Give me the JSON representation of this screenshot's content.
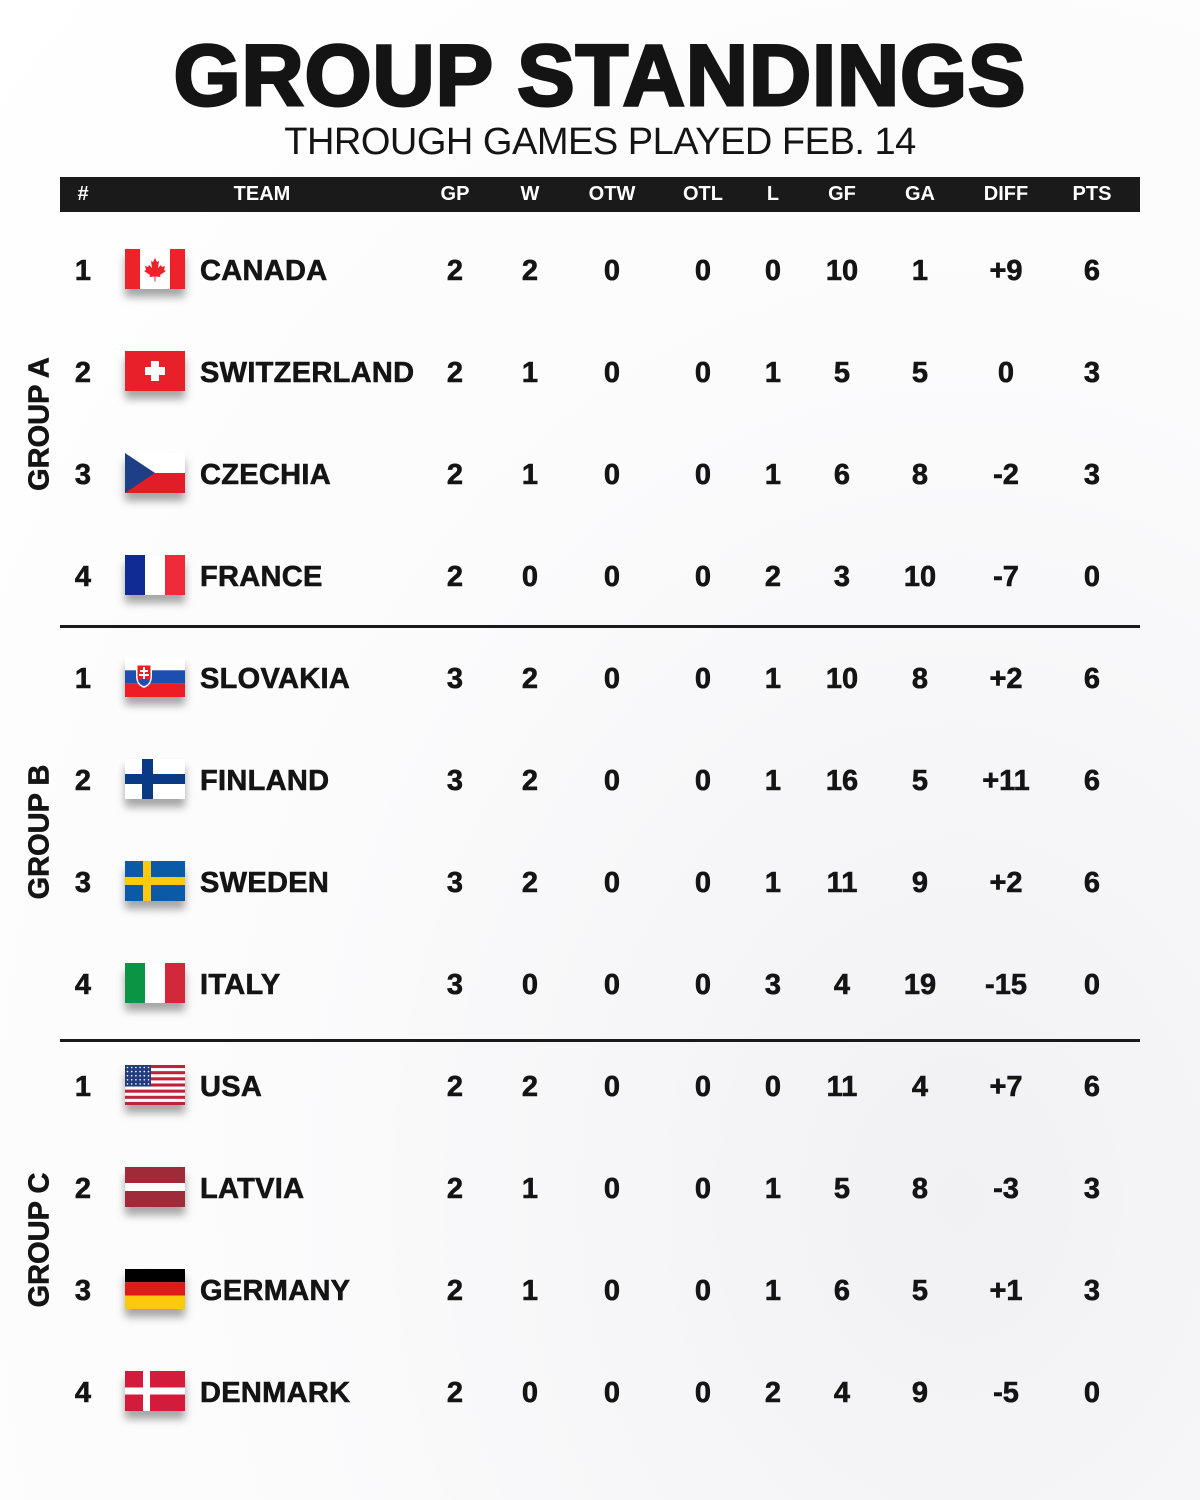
{
  "title": "GROUP STANDINGS",
  "subtitle": "THROUGH GAMES PLAYED FEB. 14",
  "columns": [
    "#",
    "TEAM",
    "GP",
    "W",
    "OTW",
    "OTL",
    "L",
    "GF",
    "GA",
    "DIFF",
    "PTS"
  ],
  "groups": [
    {
      "label": "GROUP A",
      "rows": [
        {
          "rank": "1",
          "flag": "canada-flag-icon",
          "team": "CANADA",
          "gp": "2",
          "w": "2",
          "otw": "0",
          "otl": "0",
          "l": "0",
          "gf": "10",
          "ga": "1",
          "diff": "+9",
          "pts": "6"
        },
        {
          "rank": "2",
          "flag": "switzerland-flag-icon",
          "team": "SWITZERLAND",
          "gp": "2",
          "w": "1",
          "otw": "0",
          "otl": "0",
          "l": "1",
          "gf": "5",
          "ga": "5",
          "diff": "0",
          "pts": "3"
        },
        {
          "rank": "3",
          "flag": "czechia-flag-icon",
          "team": "CZECHIA",
          "gp": "2",
          "w": "1",
          "otw": "0",
          "otl": "0",
          "l": "1",
          "gf": "6",
          "ga": "8",
          "diff": "-2",
          "pts": "3"
        },
        {
          "rank": "4",
          "flag": "france-flag-icon",
          "team": "FRANCE",
          "gp": "2",
          "w": "0",
          "otw": "0",
          "otl": "0",
          "l": "2",
          "gf": "3",
          "ga": "10",
          "diff": "-7",
          "pts": "0"
        }
      ]
    },
    {
      "label": "GROUP B",
      "rows": [
        {
          "rank": "1",
          "flag": "slovakia-flag-icon",
          "team": "SLOVAKIA",
          "gp": "3",
          "w": "2",
          "otw": "0",
          "otl": "0",
          "l": "1",
          "gf": "10",
          "ga": "8",
          "diff": "+2",
          "pts": "6"
        },
        {
          "rank": "2",
          "flag": "finland-flag-icon",
          "team": "FINLAND",
          "gp": "3",
          "w": "2",
          "otw": "0",
          "otl": "0",
          "l": "1",
          "gf": "16",
          "ga": "5",
          "diff": "+11",
          "pts": "6"
        },
        {
          "rank": "3",
          "flag": "sweden-flag-icon",
          "team": "SWEDEN",
          "gp": "3",
          "w": "2",
          "otw": "0",
          "otl": "0",
          "l": "1",
          "gf": "11",
          "ga": "9",
          "diff": "+2",
          "pts": "6"
        },
        {
          "rank": "4",
          "flag": "italy-flag-icon",
          "team": "ITALY",
          "gp": "3",
          "w": "0",
          "otw": "0",
          "otl": "0",
          "l": "3",
          "gf": "4",
          "ga": "19",
          "diff": "-15",
          "pts": "0"
        }
      ]
    },
    {
      "label": "GROUP C",
      "rows": [
        {
          "rank": "1",
          "flag": "usa-flag-icon",
          "team": "USA",
          "gp": "2",
          "w": "2",
          "otw": "0",
          "otl": "0",
          "l": "0",
          "gf": "11",
          "ga": "4",
          "diff": "+7",
          "pts": "6"
        },
        {
          "rank": "2",
          "flag": "latvia-flag-icon",
          "team": "LATVIA",
          "gp": "2",
          "w": "1",
          "otw": "0",
          "otl": "0",
          "l": "1",
          "gf": "5",
          "ga": "8",
          "diff": "-3",
          "pts": "3"
        },
        {
          "rank": "3",
          "flag": "germany-flag-icon",
          "team": "GERMANY",
          "gp": "2",
          "w": "1",
          "otw": "0",
          "otl": "0",
          "l": "1",
          "gf": "6",
          "ga": "5",
          "diff": "+1",
          "pts": "3"
        },
        {
          "rank": "4",
          "flag": "denmark-flag-icon",
          "team": "DENMARK",
          "gp": "2",
          "w": "0",
          "otw": "0",
          "otl": "0",
          "l": "2",
          "gf": "4",
          "ga": "9",
          "diff": "-5",
          "pts": "0"
        }
      ]
    }
  ],
  "colors": {
    "header_bg": "#1a1a1a",
    "text": "#141414"
  }
}
